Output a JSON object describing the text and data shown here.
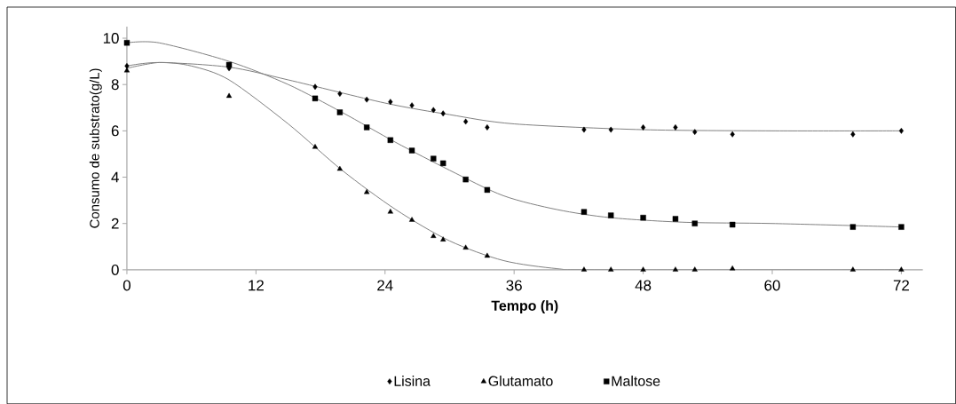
{
  "chart_data": {
    "type": "scatter",
    "xlabel": "Tempo (h)",
    "ylabel": "Consumo de substrato(g/L)",
    "xlim": [
      0,
      74
    ],
    "ylim": [
      0,
      10.5
    ],
    "xticks": [
      0,
      12,
      24,
      36,
      48,
      60,
      72
    ],
    "yticks": [
      0,
      2,
      4,
      6,
      8,
      10
    ],
    "grid": false,
    "legend": "bottom",
    "series": [
      {
        "name": "Lisina",
        "color": "#000000",
        "marker": "diamond",
        "x": [
          0,
          9.5,
          17.5,
          19.8,
          22.3,
          24.5,
          26.5,
          28.5,
          29.4,
          31.5,
          33.5,
          42.5,
          45,
          48,
          51,
          52.8,
          56.3,
          67.5,
          72
        ],
        "values": [
          8.8,
          8.7,
          7.9,
          7.6,
          7.35,
          7.25,
          7.1,
          6.9,
          6.75,
          6.4,
          6.15,
          6.05,
          6.05,
          6.15,
          6.15,
          5.95,
          5.85,
          5.85,
          6.0
        ]
      },
      {
        "name": "Glutamato",
        "color": "#000000",
        "marker": "triangle",
        "x": [
          0,
          9.5,
          17.5,
          19.8,
          22.3,
          24.5,
          26.5,
          28.5,
          29.4,
          31.5,
          33.5,
          42.5,
          45,
          48,
          51,
          52.8,
          56.3,
          67.5,
          72
        ],
        "values": [
          8.6,
          7.5,
          5.3,
          4.35,
          3.35,
          2.5,
          2.15,
          1.45,
          1.3,
          0.95,
          0.6,
          0,
          0,
          0,
          0,
          0,
          0.05,
          0,
          0
        ]
      },
      {
        "name": "Maltose",
        "color": "#000000",
        "marker": "square",
        "x": [
          0,
          9.5,
          17.5,
          19.8,
          22.3,
          24.5,
          26.5,
          28.5,
          29.4,
          31.5,
          33.5,
          42.5,
          45,
          48,
          51,
          52.8,
          56.3,
          67.5,
          72
        ],
        "values": [
          9.8,
          8.85,
          7.4,
          6.8,
          6.15,
          5.6,
          5.15,
          4.8,
          4.6,
          3.9,
          3.45,
          2.5,
          2.35,
          2.25,
          2.2,
          2.0,
          1.95,
          1.85,
          1.85
        ]
      },
      {
        "type": "line",
        "color": "#808080",
        "marker": "none",
        "x": [
          0,
          3,
          9.5,
          15,
          24,
          30,
          36,
          48,
          60,
          72
        ],
        "values": [
          8.8,
          8.95,
          8.75,
          8.2,
          7.2,
          6.7,
          6.3,
          6.05,
          6.0,
          6.0
        ]
      },
      {
        "type": "line",
        "color": "#808080",
        "marker": "none",
        "x": [
          0,
          3,
          6,
          9.5,
          15,
          20,
          25,
          30,
          35,
          40,
          44,
          72
        ],
        "values": [
          8.7,
          8.95,
          8.8,
          8.2,
          6.3,
          4.3,
          2.6,
          1.25,
          0.4,
          0.05,
          0,
          0
        ]
      },
      {
        "type": "line",
        "color": "#808080",
        "marker": "none",
        "x": [
          0,
          3,
          9.5,
          15,
          20,
          25,
          30,
          35,
          40,
          45,
          52,
          60,
          72
        ],
        "values": [
          9.8,
          9.8,
          9.0,
          8.0,
          6.8,
          5.5,
          4.3,
          3.2,
          2.6,
          2.25,
          2.05,
          2.0,
          1.85
        ]
      }
    ]
  }
}
